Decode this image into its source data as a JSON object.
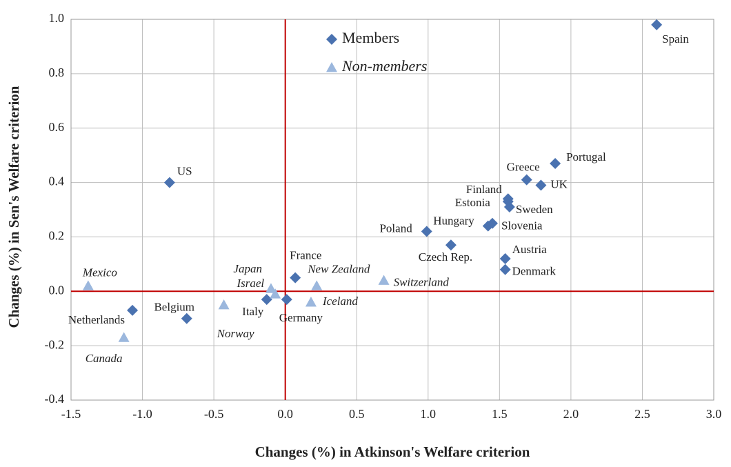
{
  "chart_data": {
    "type": "scatter",
    "x_label": "Changes (%) in Atkinson's Welfare criterion",
    "y_label": "Changes (%) in Sen's Welfare criterion",
    "xlim": [
      -1.5,
      3.0
    ],
    "ylim": [
      -0.4,
      1.0
    ],
    "xticks": [
      -1.5,
      {
        "value": -1.0,
        "label": "-1.0"
      },
      -0.5,
      {
        "value": 0,
        "label": "0.0"
      },
      0.5,
      {
        "value": 1.0,
        "label": "1.0"
      },
      1.5,
      {
        "value": 2.0,
        "label": "2.0"
      },
      2.5,
      {
        "value": 3.0,
        "label": "3.0"
      }
    ],
    "yticks": [
      {
        "value": -0.4,
        "label": "-0.4"
      },
      {
        "value": -0.2,
        "label": "-0.2"
      },
      {
        "value": 0,
        "label": "0.0"
      },
      {
        "value": 0.2,
        "label": "0.2"
      },
      {
        "value": 0.4,
        "label": "0.4"
      },
      {
        "value": 0.6,
        "label": "0.6"
      },
      {
        "value": 0.8,
        "label": "0.8"
      },
      {
        "value": 1.0,
        "label": "1.0"
      }
    ],
    "grid": true,
    "series": [
      {
        "name": "Members",
        "color": "#4a72b0",
        "marker": "diamond",
        "italic": false,
        "labels": [
          "Spain",
          "Portugal",
          "Greece",
          "UK",
          "Finland",
          "Estonia",
          "Sweden",
          "Hungary",
          "Slovenia",
          "Poland",
          "Czech Rep.",
          "Austria",
          "Denmark",
          "France",
          "US",
          "Netherlands",
          "Belgium",
          "Italy",
          "Germany"
        ],
        "x": [
          2.6,
          1.89,
          1.69,
          1.79,
          1.56,
          1.56,
          1.57,
          1.42,
          1.45,
          0.99,
          1.16,
          1.54,
          1.54,
          0.07,
          -0.81,
          -1.07,
          -0.69,
          -0.13,
          0.01
        ],
        "values": [
          0.98,
          0.47,
          0.41,
          0.39,
          0.34,
          0.33,
          0.31,
          0.24,
          0.25,
          0.22,
          0.17,
          0.12,
          0.08,
          0.05,
          0.4,
          -0.07,
          -0.1,
          -0.03,
          -0.03
        ]
      },
      {
        "name": "Non-members",
        "color": "#9bb7dd",
        "marker": "triangle",
        "italic": true,
        "labels": [
          "Mexico",
          "Canada",
          "Norway",
          "Japan",
          "Israel",
          "New Zealand",
          "Iceland",
          "Switzerland"
        ],
        "x": [
          -1.38,
          -1.13,
          -0.43,
          -0.1,
          -0.07,
          0.22,
          0.18,
          0.69
        ],
        "values": [
          0.02,
          -0.17,
          -0.05,
          0.01,
          -0.01,
          0.02,
          -0.04,
          0.04
        ]
      }
    ]
  }
}
